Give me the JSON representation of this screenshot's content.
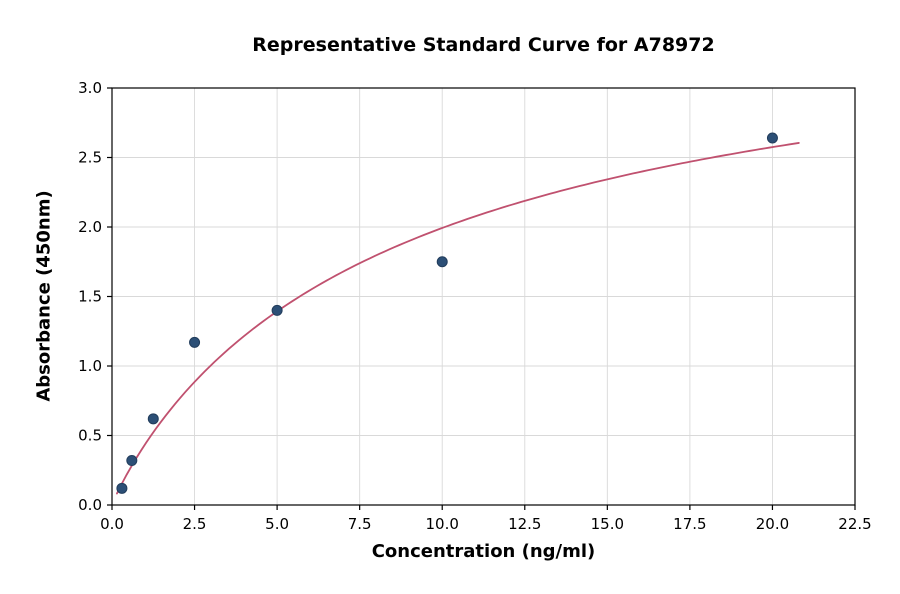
{
  "chart_data": {
    "type": "scatter",
    "title": "Representative Standard Curve for A78972",
    "xlabel": "Concentration (ng/ml)",
    "ylabel": "Absorbance (450nm)",
    "xlim": [
      0,
      22.5
    ],
    "ylim": [
      0,
      3.0
    ],
    "grid": true,
    "legend": "none",
    "xticks": [
      0.0,
      2.5,
      5.0,
      7.5,
      10.0,
      12.5,
      15.0,
      17.5,
      20.0,
      22.5
    ],
    "xtick_labels": [
      "0.0",
      "2.5",
      "5.0",
      "7.5",
      "10.0",
      "12.5",
      "15.0",
      "17.5",
      "20.0",
      "22.5"
    ],
    "yticks": [
      0.0,
      0.5,
      1.0,
      1.5,
      2.0,
      2.5,
      3.0
    ],
    "ytick_labels": [
      "0.0",
      "0.5",
      "1.0",
      "1.5",
      "2.0",
      "2.5",
      "3.0"
    ],
    "points": [
      [
        0.3,
        0.12
      ],
      [
        0.6,
        0.32
      ],
      [
        1.25,
        0.62
      ],
      [
        2.5,
        1.17
      ],
      [
        5.0,
        1.4
      ],
      [
        10.0,
        1.75
      ],
      [
        20.0,
        2.64
      ]
    ],
    "fit_curve": {
      "model": "hill",
      "d": 3.8,
      "c": 9.0,
      "b": 0.93,
      "x_start": 0.15,
      "x_end": 20.8,
      "samples": 140
    },
    "colors": {
      "point": "#2c4f76",
      "point_edge": "#223d5c",
      "line": "#c0516f",
      "grid": "#d9d9d9",
      "axis": "#000000",
      "background": "#ffffff"
    }
  }
}
